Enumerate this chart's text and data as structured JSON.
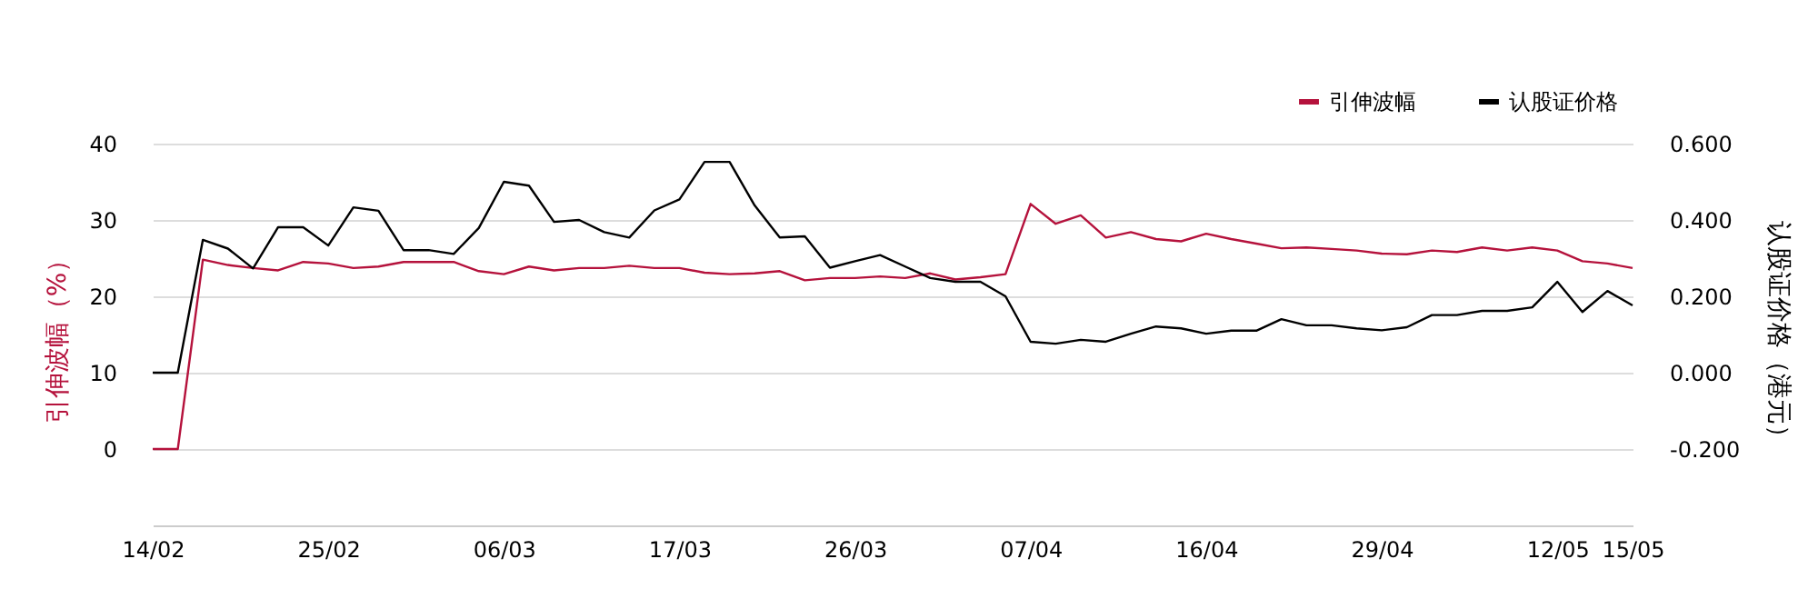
{
  "chart_data": {
    "type": "line",
    "ylabel": "引伸波幅（%）",
    "y2label": "认股证价格（港元）",
    "categories": [
      "14/02",
      null,
      null,
      null,
      null,
      null,
      null,
      "25/02",
      null,
      null,
      null,
      null,
      null,
      null,
      "06/03",
      null,
      null,
      null,
      null,
      null,
      null,
      "17/03",
      null,
      null,
      null,
      null,
      null,
      null,
      "26/03",
      null,
      null,
      null,
      null,
      null,
      null,
      "07/04",
      null,
      null,
      null,
      null,
      null,
      null,
      "16/04",
      null,
      null,
      null,
      null,
      null,
      null,
      "29/04",
      null,
      null,
      null,
      null,
      null,
      null,
      "12/05",
      null,
      null,
      "15/05"
    ],
    "series": [
      {
        "name": "引伸波幅",
        "color": "#b5123c",
        "values": [
          0,
          0,
          24.8,
          24.1,
          23.7,
          23.4,
          24.5,
          24.3,
          23.7,
          23.9,
          24.5,
          24.5,
          24.5,
          23.3,
          22.9,
          23.9,
          23.4,
          23.7,
          23.7,
          24.0,
          23.7,
          23.7,
          23.1,
          22.9,
          23.0,
          23.3,
          22.1,
          22.4,
          22.4,
          22.6,
          22.4,
          23.0,
          22.2,
          22.5,
          22.9,
          32.1,
          29.5,
          30.6,
          27.7,
          28.4,
          27.5,
          27.2,
          28.2,
          27.5,
          26.9,
          26.3,
          26.4,
          26.2,
          26.0,
          25.6,
          25.5,
          26.0,
          25.8,
          26.4,
          26.0,
          26.4,
          26.0,
          24.6,
          24.3,
          23.7
        ]
      },
      {
        "name": "认股证价格",
        "color": "#000000",
        "axis": "y2",
        "values": [
          0.0,
          0.0,
          0.348,
          0.325,
          0.273,
          0.381,
          0.381,
          0.333,
          0.433,
          0.424,
          0.321,
          0.321,
          0.311,
          0.379,
          0.5,
          0.49,
          0.395,
          0.4,
          0.368,
          0.354,
          0.425,
          0.454,
          0.552,
          0.552,
          0.438,
          0.354,
          0.357,
          0.275,
          0.292,
          0.308,
          0.278,
          0.248,
          0.238,
          0.238,
          0.2,
          0.081,
          0.076,
          0.086,
          0.081,
          0.102,
          0.121,
          0.116,
          0.102,
          0.11,
          0.11,
          0.14,
          0.124,
          0.124,
          0.116,
          0.111,
          0.119,
          0.151,
          0.151,
          0.162,
          0.162,
          0.171,
          0.238,
          0.159,
          0.214,
          0.176
        ]
      }
    ],
    "ylim": [
      -10,
      40
    ],
    "yticks": [
      0,
      10,
      20,
      30,
      40
    ],
    "y2lim": [
      -0.4,
      0.6
    ],
    "y2ticks": [
      {
        "value": -0.2,
        "label": "-0.200"
      },
      {
        "value": 0,
        "label": "0.000"
      },
      {
        "value": 0.2,
        "label": "0.200"
      },
      {
        "value": 0.4,
        "label": "0.400"
      },
      {
        "value": 0.6,
        "label": "0.600"
      }
    ],
    "grid": "y",
    "legend": "top right",
    "marker": "none",
    "line_style": "solid"
  }
}
